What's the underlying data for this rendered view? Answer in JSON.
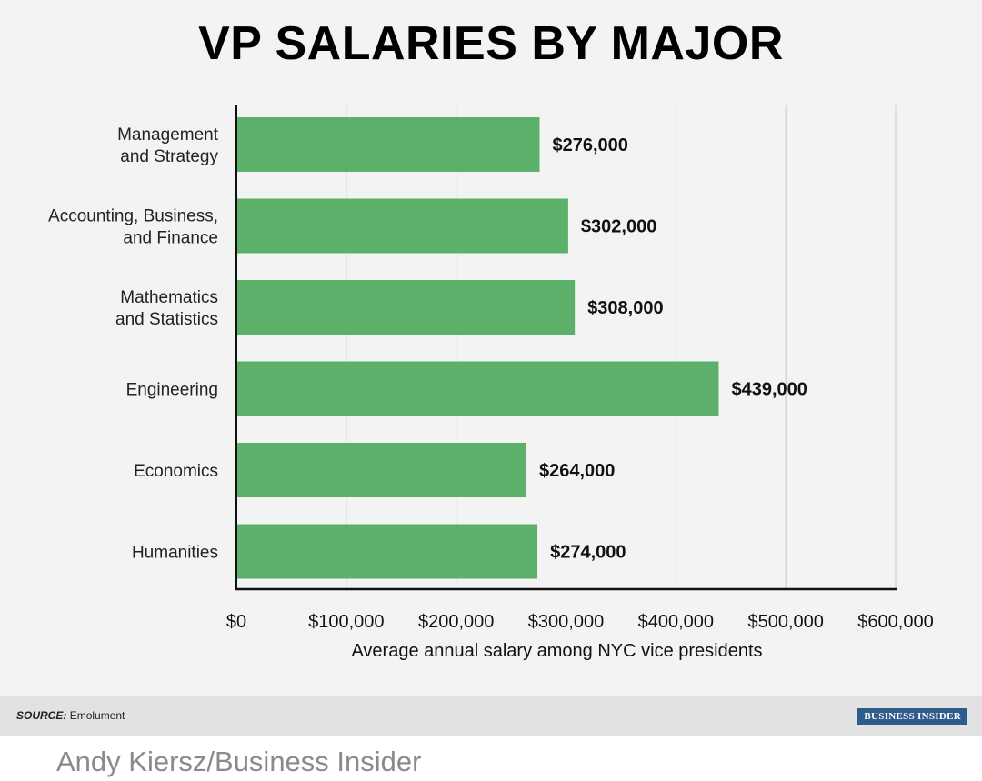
{
  "chart_data": {
    "type": "bar",
    "orientation": "horizontal",
    "title": "VP SALARIES BY MAJOR",
    "categories": [
      "Management\nand Strategy",
      "Accounting, Business,\nand Finance",
      "Mathematics\nand Statistics",
      "Engineering",
      "Economics",
      "Humanities"
    ],
    "values": [
      276000,
      302000,
      308000,
      439000,
      264000,
      274000
    ],
    "value_labels": [
      "$276,000",
      "$302,000",
      "$308,000",
      "$439,000",
      "$264,000",
      "$274,000"
    ],
    "xlabel": "Average annual salary among NYC vice presidents",
    "xlim": [
      0,
      600000
    ],
    "xticks": [
      0,
      100000,
      200000,
      300000,
      400000,
      500000,
      600000
    ],
    "xtick_labels": [
      "$0",
      "$100,000",
      "$200,000",
      "$300,000",
      "$400,000",
      "$500,000",
      "$600,000"
    ],
    "grid": "vertical",
    "bar_color": "#5db06a"
  },
  "source": {
    "label": "SOURCE:",
    "text": "Emolument"
  },
  "brand": "BUSINESS INSIDER",
  "credit": "Andy Kiersz/Business Insider"
}
